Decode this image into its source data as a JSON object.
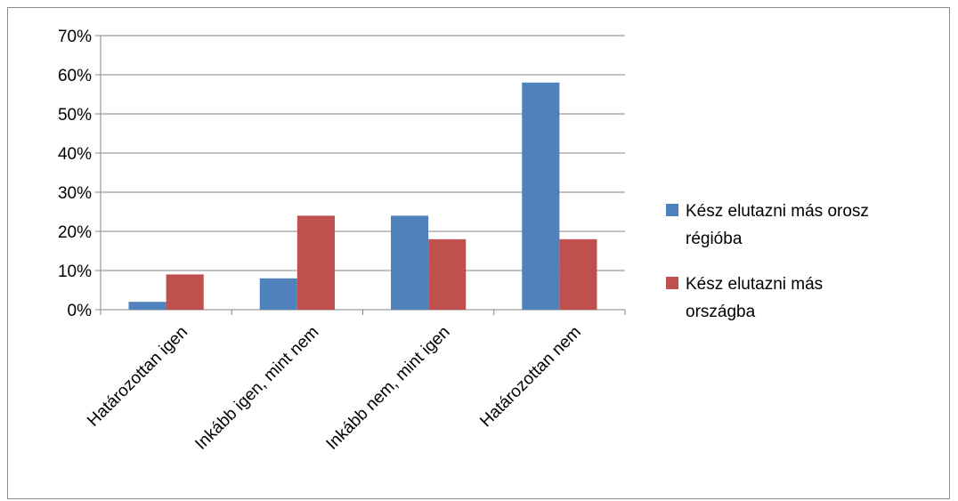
{
  "chart_data": {
    "type": "bar",
    "title": "",
    "xlabel": "",
    "ylabel": "",
    "categories": [
      "Határozottan igen",
      "Inkább igen, mint nem",
      "Inkább nem, mint igen",
      "Határozottan nem"
    ],
    "series": [
      {
        "name": "Kész elutazni más orosz régióba",
        "legend_lines": [
          "Kész elutazni más orosz",
          "régióba"
        ],
        "color": "#4f81bd",
        "values": [
          2,
          8,
          24,
          58
        ]
      },
      {
        "name": "Kész elutazni más országba",
        "legend_lines": [
          "Kész elutazni más",
          "országba"
        ],
        "color": "#c0504d",
        "values": [
          9,
          24,
          18,
          18
        ]
      }
    ],
    "ylim": [
      0,
      70
    ],
    "yticks": [
      0,
      10,
      20,
      30,
      40,
      50,
      60,
      70
    ],
    "ytick_labels": [
      "0%",
      "10%",
      "20%",
      "30%",
      "40%",
      "50%",
      "60%",
      "70%"
    ],
    "grid": true,
    "legend_position": "right"
  }
}
